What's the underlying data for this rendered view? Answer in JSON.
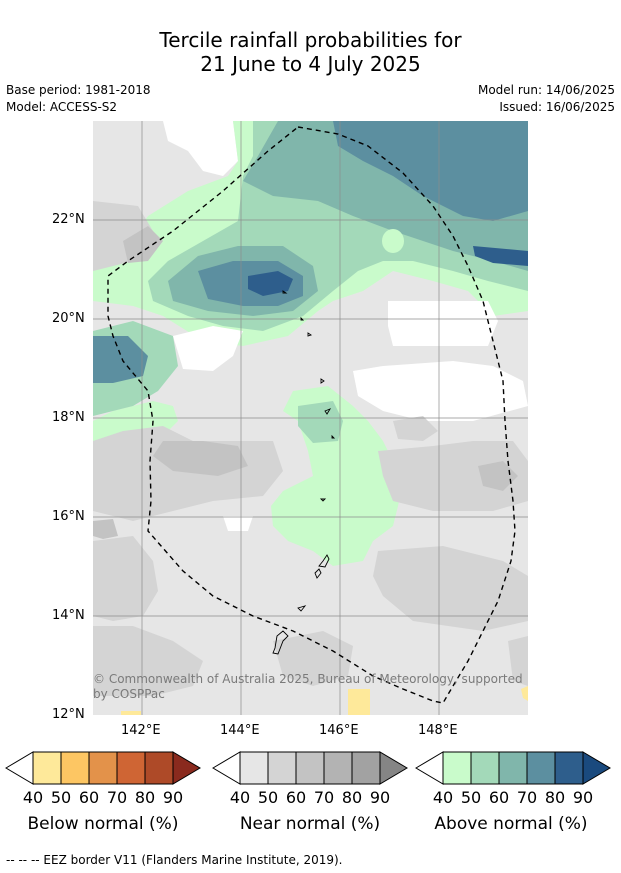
{
  "header": {
    "title_line1": "Tercile rainfall probabilities for",
    "title_line2": "21 June to 4 July 2025",
    "base_period": "Base period: 1981-2018",
    "model": "Model: ACCESS-S2",
    "model_run": "Model run: 14/06/2025",
    "issued": "Issued: 16/06/2025"
  },
  "map": {
    "lat_labels": [
      "22°N",
      "20°N",
      "18°N",
      "16°N",
      "14°N",
      "12°N"
    ],
    "lon_labels": [
      "142°E",
      "144°E",
      "146°E",
      "148°E"
    ],
    "copyright_line1": "© Commonwealth of Australia 2025, Bureau of Meteorology, supported",
    "copyright_line2": "by COSPPac"
  },
  "legends": [
    {
      "title": "Below normal (%)",
      "labels": [
        "40",
        "50",
        "60",
        "70",
        "80",
        "90"
      ],
      "colors": [
        "#ffffff",
        "#fee99a",
        "#fdc663",
        "#e3924a",
        "#cf6534",
        "#ae4a28",
        "#8a2a1e"
      ]
    },
    {
      "title": "Near normal (%)",
      "labels": [
        "40",
        "50",
        "60",
        "70",
        "80",
        "90"
      ],
      "colors": [
        "#ffffff",
        "#e6e6e6",
        "#d4d4d4",
        "#c3c3c3",
        "#b3b3b3",
        "#a2a2a2",
        "#858585"
      ]
    },
    {
      "title": "Above normal (%)",
      "labels": [
        "40",
        "50",
        "60",
        "70",
        "80",
        "90"
      ],
      "colors": [
        "#ffffff",
        "#c9fbcb",
        "#a3d9b9",
        "#80b6ab",
        "#5c8fa0",
        "#2e5e8c",
        "#1a4a7e"
      ]
    }
  ],
  "footnote": "--  --  -- EEZ border V11 (Flanders Marine Institute, 2019)."
}
